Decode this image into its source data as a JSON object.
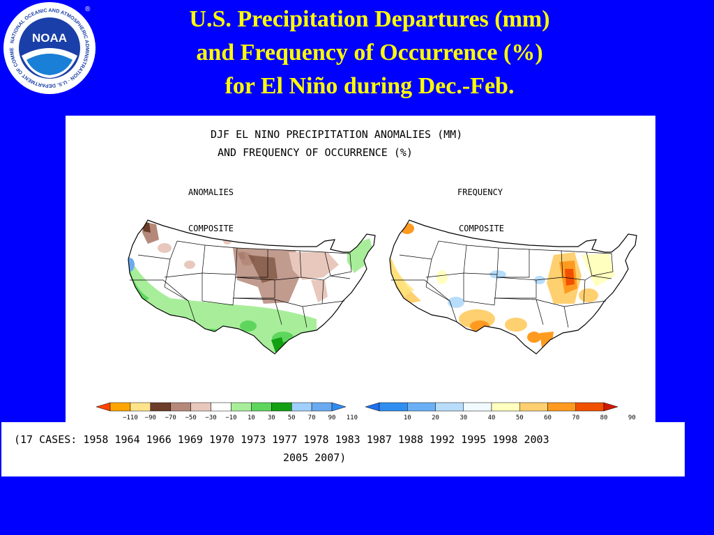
{
  "logo": {
    "text": "NOAA",
    "ring_text": "NATIONAL OCEANIC AND ATMOSPHERIC ADMINISTRATION · U.S. DEPARTMENT OF COMMERCE",
    "registered_mark": "®"
  },
  "title": {
    "line1": "U.S. Precipitation Departures (mm)",
    "line2": "and Frequency of Occurrence (%)",
    "line3": "for El Niño during Dec.-Feb."
  },
  "figure": {
    "header_line1": "DJF EL NINO PRECIPITATION ANOMALIES (MM)",
    "header_line2": "AND FREQUENCY OF OCCURRENCE (%)",
    "left_panel": {
      "title": "ANOMALIES",
      "subtitle": "COMPOSITE",
      "colorbar": {
        "labels": [
          "−110",
          "−90",
          "−70",
          "−50",
          "−30",
          "−10",
          "10",
          "30",
          "50",
          "70",
          "90",
          "110"
        ],
        "colors": [
          "#ff4400",
          "#ffa500",
          "#ffe38a",
          "#6b3d2a",
          "#b5897a",
          "#e8c8bd",
          "#ffffff",
          "#a8ee9a",
          "#5ed65e",
          "#12a012",
          "#9fd0ff",
          "#6baaf0",
          "#2f8cf0"
        ]
      }
    },
    "right_panel": {
      "title": "FREQUENCY",
      "subtitle": "COMPOSITE",
      "colorbar": {
        "labels": [
          "10",
          "20",
          "30",
          "40",
          "50",
          "60",
          "70",
          "80",
          "90"
        ],
        "colors": [
          "#1f6ff0",
          "#2f8ef0",
          "#6bb0f5",
          "#b8ddfa",
          "#f0faff",
          "#ffffc0",
          "#ffd070",
          "#ff9a20",
          "#f05000",
          "#d01a00"
        ]
      }
    }
  },
  "cases": {
    "line1": "(17 CASES:  1958 1964 1966 1969 1970 1973 1977 1978 1983 1987 1988 1992 1995 1998 2003",
    "line2": "2005 2007)"
  }
}
